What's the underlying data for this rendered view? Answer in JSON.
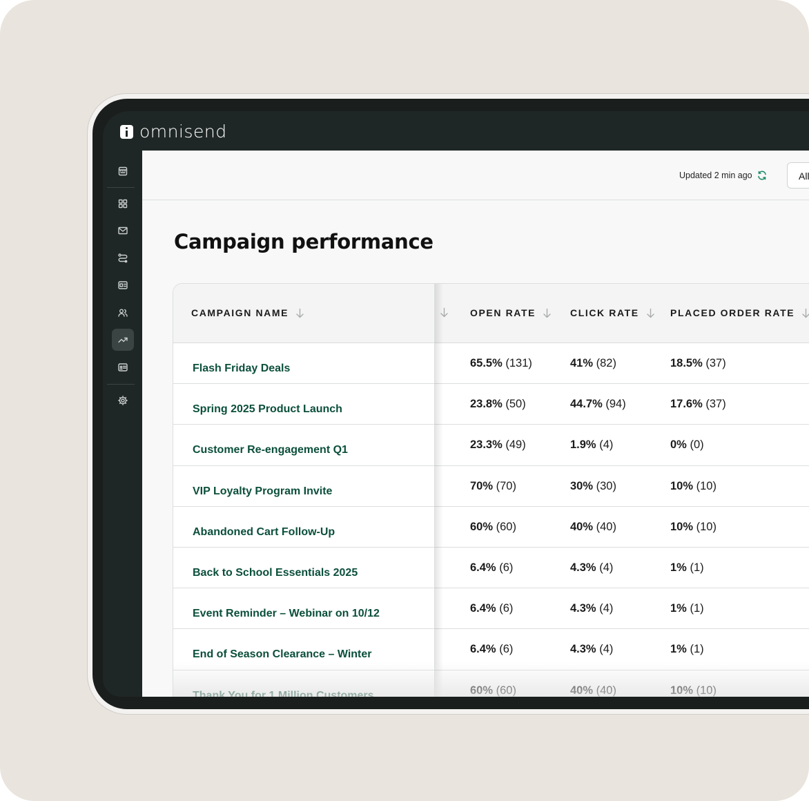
{
  "app": {
    "brand": "omnisend"
  },
  "sidebar": {
    "items": [
      {
        "name": "store",
        "icon": "store-icon"
      },
      {
        "name": "dashboard",
        "icon": "grid-icon"
      },
      {
        "name": "campaigns",
        "icon": "mail-icon"
      },
      {
        "name": "automation",
        "icon": "workflow-icon"
      },
      {
        "name": "forms",
        "icon": "form-icon"
      },
      {
        "name": "audience",
        "icon": "users-icon"
      },
      {
        "name": "reports",
        "icon": "trend-icon",
        "active": true
      },
      {
        "name": "sms",
        "icon": "card-icon"
      },
      {
        "name": "settings",
        "icon": "gear-icon"
      }
    ]
  },
  "header": {
    "updated": "Updated 2 min ago",
    "filter_label": "All"
  },
  "page": {
    "title": "Campaign performance"
  },
  "table": {
    "columns": [
      "CAMPAIGN NAME",
      "OPEN RATE",
      "CLICK RATE",
      "PLACED ORDER RATE"
    ],
    "rows": [
      {
        "name": "Flash Friday Deals",
        "open_pct": "65.5%",
        "open_count": "(131)",
        "click_pct": "41%",
        "click_count": "(82)",
        "order_pct": "18.5%",
        "order_count": "(37)"
      },
      {
        "name": "Spring 2025 Product Launch",
        "open_pct": "23.8%",
        "open_count": "(50)",
        "click_pct": "44.7%",
        "click_count": "(94)",
        "order_pct": "17.6%",
        "order_count": "(37)"
      },
      {
        "name": "Customer Re-engagement Q1",
        "open_pct": "23.3%",
        "open_count": "(49)",
        "click_pct": "1.9%",
        "click_count": "(4)",
        "order_pct": "0%",
        "order_count": "(0)"
      },
      {
        "name": "VIP Loyalty Program Invite",
        "open_pct": "70%",
        "open_count": "(70)",
        "click_pct": "30%",
        "click_count": "(30)",
        "order_pct": "10%",
        "order_count": "(10)"
      },
      {
        "name": "Abandoned Cart Follow-Up",
        "open_pct": "60%",
        "open_count": "(60)",
        "click_pct": "40%",
        "click_count": "(40)",
        "order_pct": "10%",
        "order_count": "(10)"
      },
      {
        "name": "Back to School Essentials 2025",
        "open_pct": "6.4%",
        "open_count": "(6)",
        "click_pct": "4.3%",
        "click_count": "(4)",
        "order_pct": "1%",
        "order_count": "(1)"
      },
      {
        "name": "Event Reminder – Webinar on 10/12",
        "open_pct": "6.4%",
        "open_count": "(6)",
        "click_pct": "4.3%",
        "click_count": "(4)",
        "order_pct": "1%",
        "order_count": "(1)"
      },
      {
        "name": "End of Season Clearance – Winter",
        "open_pct": "6.4%",
        "open_count": "(6)",
        "click_pct": "4.3%",
        "click_count": "(4)",
        "order_pct": "1%",
        "order_count": "(1)"
      },
      {
        "name": "Thank You for 1 Million Customers",
        "open_pct": "60%",
        "open_count": "(60)",
        "click_pct": "40%",
        "click_count": "(40)",
        "order_pct": "10%",
        "order_count": "(10)"
      }
    ]
  },
  "colors": {
    "accent": "#0b4f3b",
    "sidebar": "#1f2726",
    "refresh": "#1e8a6a"
  }
}
